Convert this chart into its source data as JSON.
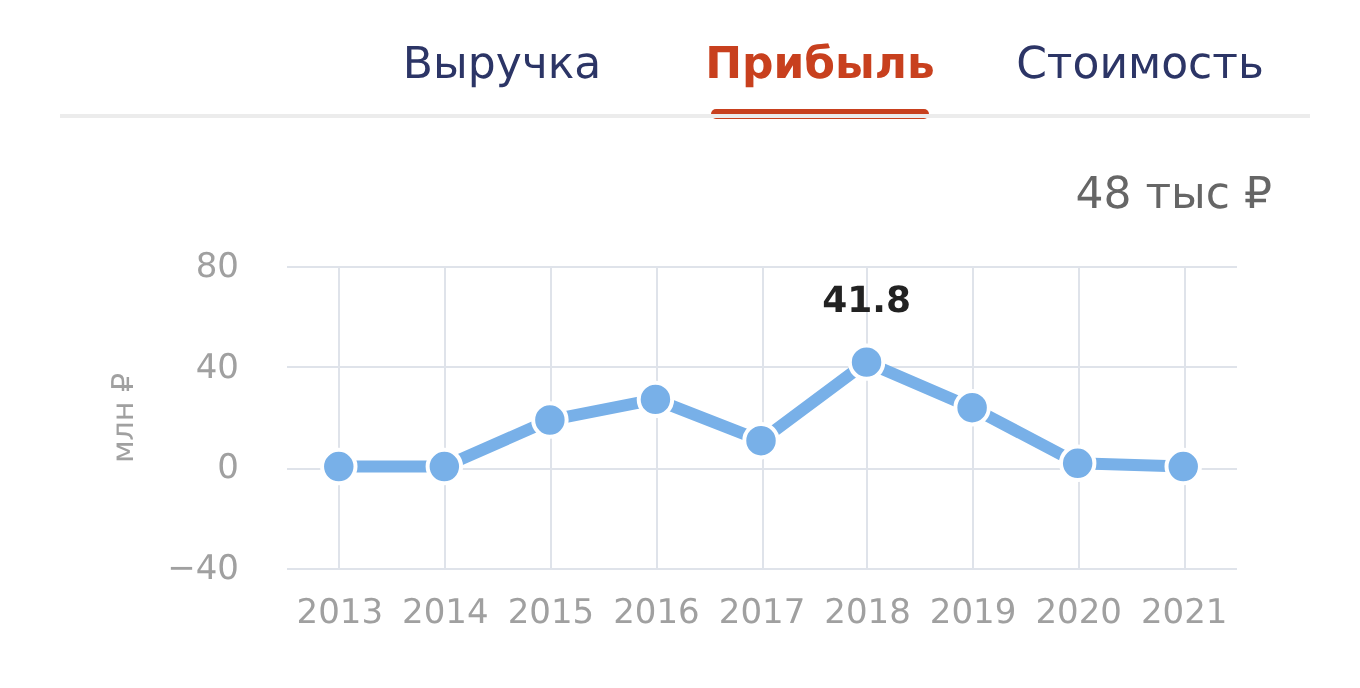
{
  "chart_data": {
    "type": "line",
    "annotations": [
      "Выручка",
      "Прибыль",
      "Стоимость",
      "48 тыс ₽"
    ],
    "ylabel": "млн ₽",
    "categories": [
      "2013",
      "2014",
      "2015",
      "2016",
      "2017",
      "2018",
      "2019",
      "2020",
      "2021"
    ],
    "series": [
      {
        "color": "#78b0e8",
        "values": [
          0.3,
          0.3,
          18.8,
          27,
          10.6,
          41.8,
          23.7,
          1.6,
          0.3
        ],
        "value_labels": [
          null,
          null,
          null,
          null,
          null,
          "41.8",
          null,
          null,
          null
        ]
      }
    ],
    "ylim": [
      -40,
      80
    ],
    "yticks": [
      -40,
      0,
      40,
      80
    ],
    "grid": true,
    "marker": "circle",
    "line_style": "solid"
  }
}
